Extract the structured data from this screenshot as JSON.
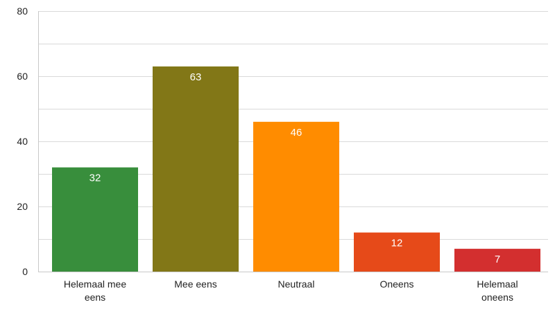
{
  "chart_data": {
    "type": "bar",
    "title": "",
    "xlabel": "",
    "ylabel": "",
    "ylim": [
      0,
      80
    ],
    "yticks": [
      0,
      20,
      40,
      60,
      80
    ],
    "grid": true,
    "categories": [
      [
        "Helemaal mee",
        "eens"
      ],
      [
        "Mee eens"
      ],
      [
        "Neutraal"
      ],
      [
        "Oneens"
      ],
      [
        "Helemaal",
        "oneens"
      ]
    ],
    "values": [
      32,
      63,
      46,
      12,
      7
    ],
    "colors": [
      "#388e3c",
      "#827717",
      "#ff8c00",
      "#e64a19",
      "#d32f2f"
    ]
  }
}
